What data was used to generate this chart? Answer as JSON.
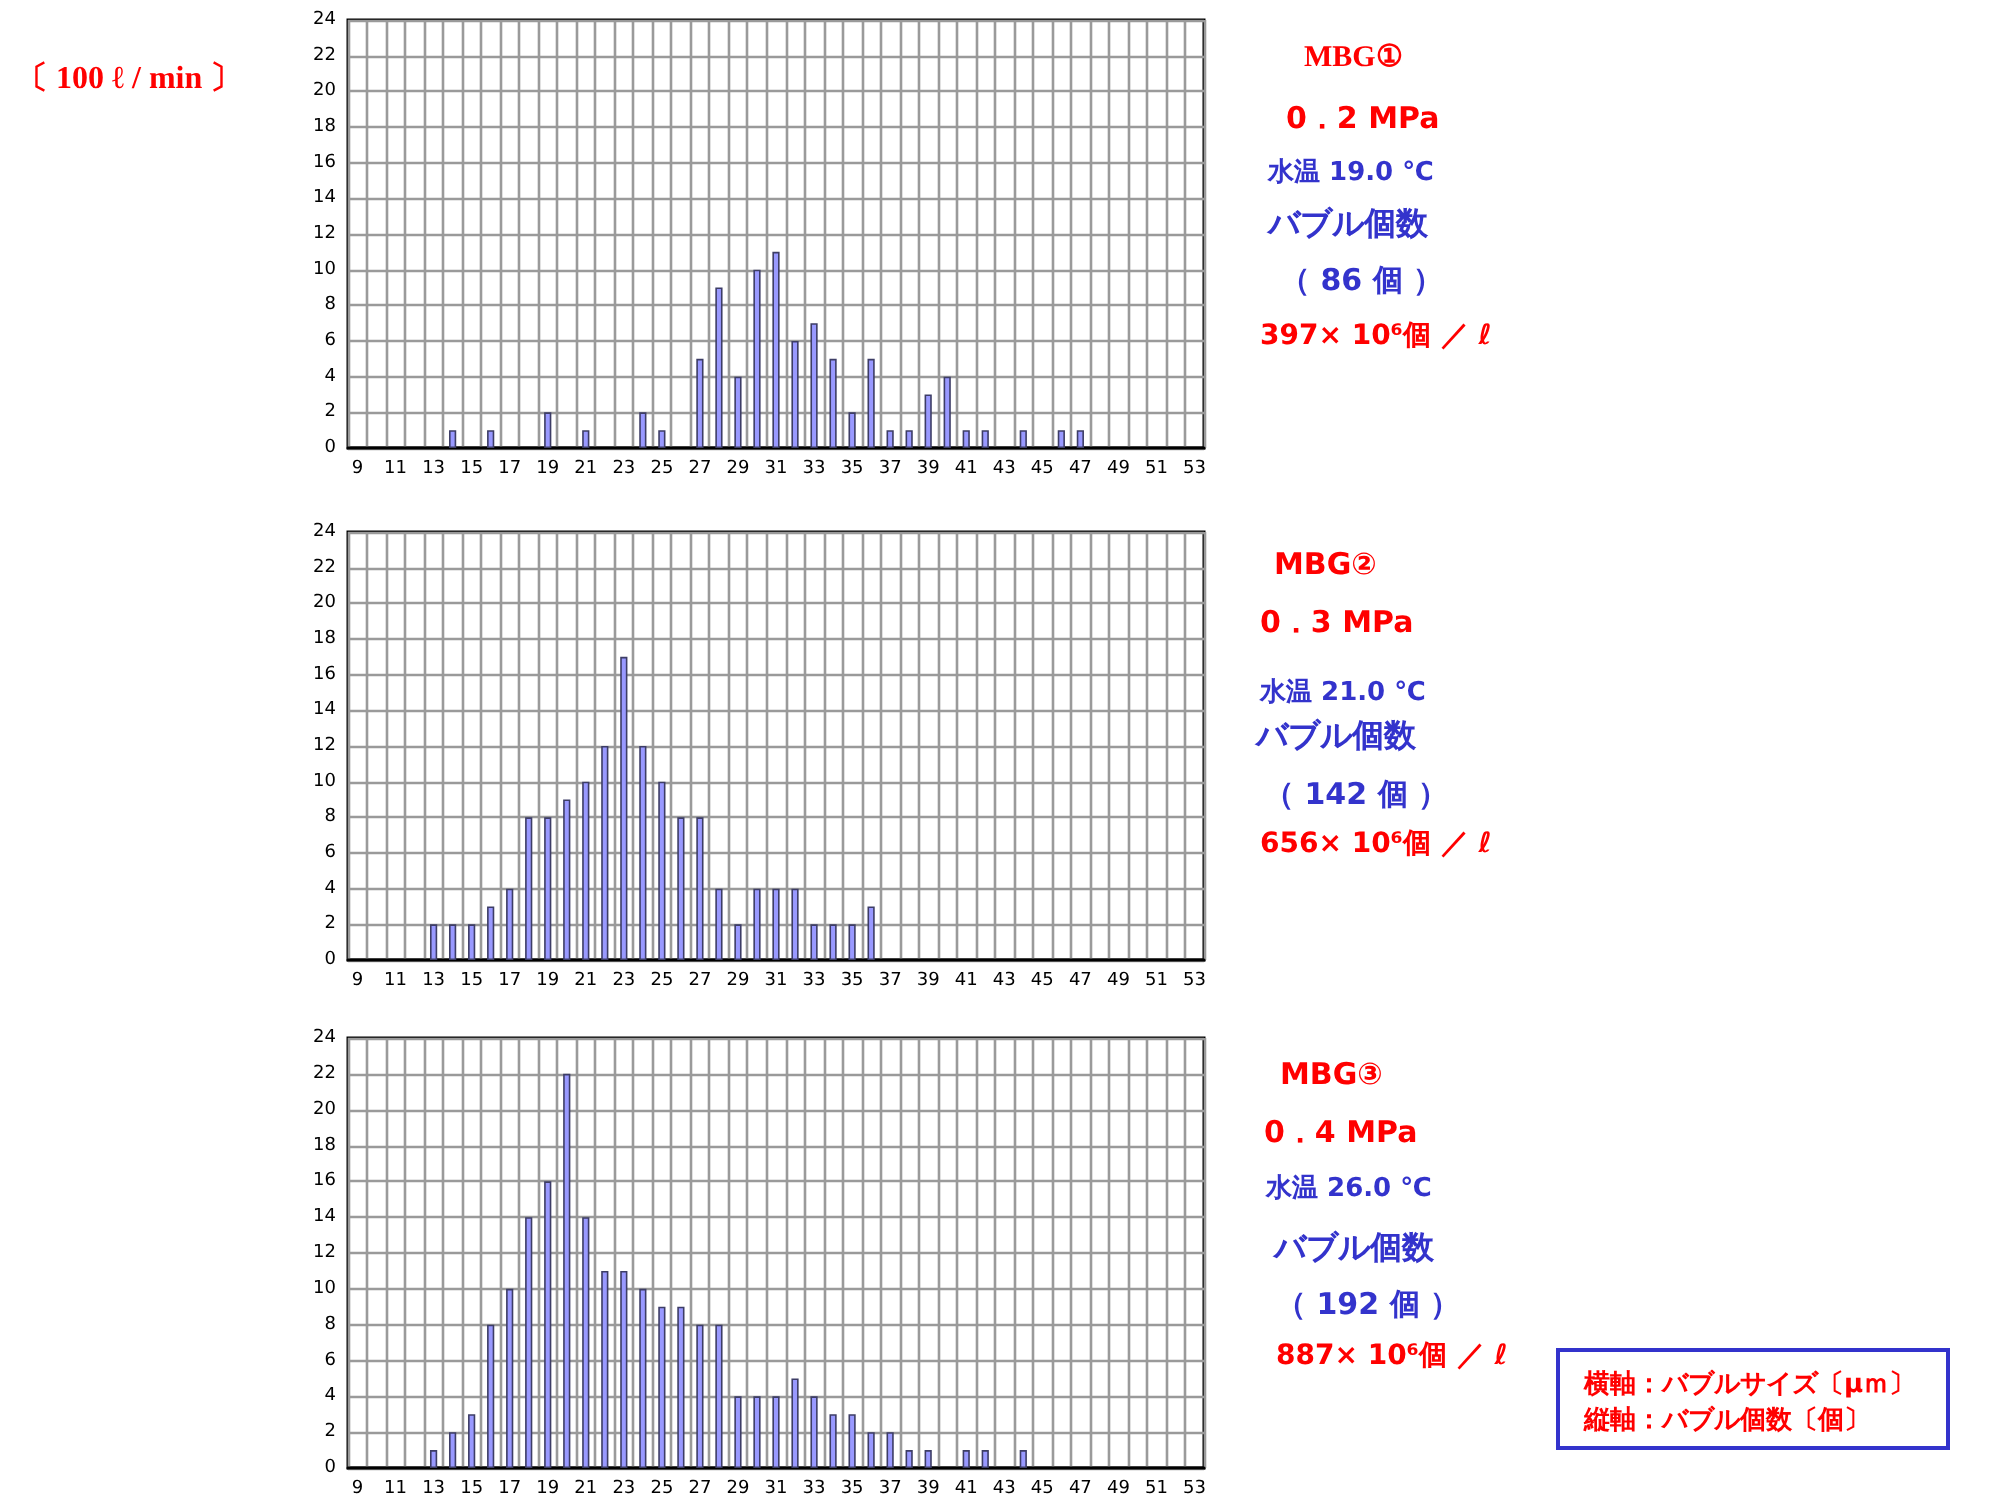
{
  "chart_data": [
    {
      "type": "other",
      "annotations": [
        "〔 100 ℓ / min 〕"
      ]
    },
    {
      "type": "bar",
      "annotations": [
        "MBG①",
        "0．2 MPa",
        "水温 19.0 ℃",
        "バブル個数",
        "（ 86 個 ）",
        "397× 10⁶個 ／ ℓ"
      ],
      "categories": [
        "9",
        null,
        "11",
        null,
        "13",
        null,
        "15",
        null,
        "17",
        null,
        "19",
        null,
        "21",
        null,
        "23",
        null,
        "25",
        null,
        "27",
        null,
        "29",
        null,
        "31",
        null,
        "33",
        null,
        "35",
        null,
        "37",
        null,
        "39",
        null,
        "41",
        null,
        "43",
        null,
        "45",
        null,
        "47",
        null,
        "49",
        null,
        "51",
        null,
        "53"
      ],
      "values": [
        null,
        null,
        null,
        null,
        null,
        1,
        null,
        1,
        null,
        null,
        2,
        null,
        1,
        null,
        null,
        2,
        1,
        null,
        5,
        9,
        4,
        10,
        11,
        6,
        7,
        5,
        2,
        5,
        1,
        1,
        3,
        4,
        1,
        1,
        null,
        1,
        null,
        1,
        1,
        null,
        null,
        null,
        null,
        null,
        null
      ],
      "color": "#9999ff",
      "ylim": [
        0,
        24
      ],
      "yticks": [
        0,
        2,
        4,
        6,
        8,
        10,
        12,
        14,
        16,
        18,
        20,
        22,
        24
      ],
      "grid": true
    },
    {
      "type": "bar",
      "annotations": [
        "MBG②",
        "0．3 MPa",
        "水温 21.0 ℃",
        "バブル個数",
        "（ 142 個 ）",
        "656× 10⁶個 ／ ℓ"
      ],
      "categories": [
        "9",
        null,
        "11",
        null,
        "13",
        null,
        "15",
        null,
        "17",
        null,
        "19",
        null,
        "21",
        null,
        "23",
        null,
        "25",
        null,
        "27",
        null,
        "29",
        null,
        "31",
        null,
        "33",
        null,
        "35",
        null,
        "37",
        null,
        "39",
        null,
        "41",
        null,
        "43",
        null,
        "45",
        null,
        "47",
        null,
        "49",
        null,
        "51",
        null,
        "53"
      ],
      "values": [
        null,
        null,
        null,
        null,
        2,
        2,
        2,
        3,
        4,
        8,
        8,
        9,
        10,
        12,
        17,
        12,
        10,
        8,
        8,
        4,
        2,
        4,
        4,
        4,
        2,
        2,
        2,
        3,
        null,
        null,
        null,
        null,
        null,
        null,
        null,
        null,
        null,
        null,
        null,
        null,
        null,
        null,
        null,
        null,
        null
      ],
      "color": "#9999ff",
      "ylim": [
        0,
        24
      ],
      "yticks": [
        0,
        2,
        4,
        6,
        8,
        10,
        12,
        14,
        16,
        18,
        20,
        22,
        24
      ],
      "grid": true
    },
    {
      "type": "bar",
      "annotations": [
        "MBG③",
        "0．4 MPa",
        "水温 26.0 ℃",
        "バブル個数",
        "（ 192 個 ）",
        "887× 10⁶個 ／ ℓ"
      ],
      "categories": [
        "9",
        null,
        "11",
        null,
        "13",
        null,
        "15",
        null,
        "17",
        null,
        "19",
        null,
        "21",
        null,
        "23",
        null,
        "25",
        null,
        "27",
        null,
        "29",
        null,
        "31",
        null,
        "33",
        null,
        "35",
        null,
        "37",
        null,
        "39",
        null,
        "41",
        null,
        "43",
        null,
        "45",
        null,
        "47",
        null,
        "49",
        null,
        "51",
        null,
        "53"
      ],
      "values": [
        null,
        null,
        null,
        null,
        1,
        2,
        3,
        8,
        10,
        14,
        16,
        22,
        14,
        11,
        11,
        10,
        9,
        9,
        8,
        8,
        4,
        4,
        4,
        5,
        4,
        3,
        3,
        2,
        2,
        1,
        1,
        null,
        1,
        1,
        null,
        1,
        null,
        null,
        null,
        null,
        null,
        null,
        null,
        null,
        null
      ],
      "color": "#9999ff",
      "ylim": [
        0,
        24
      ],
      "yticks": [
        0,
        2,
        4,
        6,
        8,
        10,
        12,
        14,
        16,
        18,
        20,
        22,
        24
      ],
      "grid": true
    },
    {
      "type": "other",
      "annotations": [
        "横軸：バブルサイズ〔μｍ〕",
        "縦軸：バブル個数〔個〕"
      ]
    }
  ]
}
